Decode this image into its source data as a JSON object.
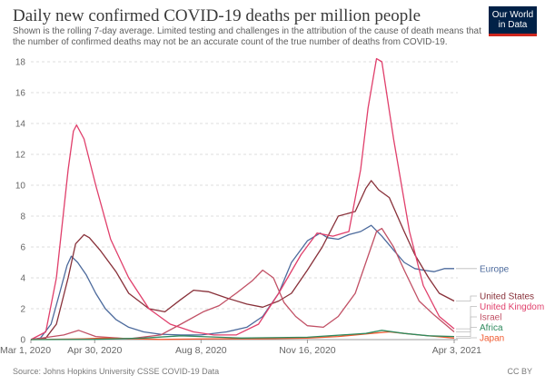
{
  "header": {
    "title": "Daily new confirmed COVID-19 deaths per million people",
    "subtitle": "Shown is the rolling 7-day average. Limited testing and challenges in the attribution of the cause of death means that the number of confirmed deaths may not be an accurate count of the true number of deaths from COVID-19.",
    "logo_line1": "Our World",
    "logo_line2": "in Data"
  },
  "footer": {
    "source": "Source: Johns Hopkins University CSSE COVID-19 Data",
    "license": "CC BY"
  },
  "chart_data": {
    "type": "line",
    "title": "Daily new confirmed COVID-19 deaths per million people",
    "ylim": [
      0,
      18
    ],
    "y_ticks": [
      0,
      2,
      4,
      6,
      8,
      10,
      12,
      14,
      16,
      18
    ],
    "x_range": [
      "2020-03-01",
      "2021-04-03"
    ],
    "x_ticks": [
      {
        "date": "2020-03-01",
        "label": "Mar 1, 2020"
      },
      {
        "date": "2020-04-30",
        "label": "Apr 30, 2020"
      },
      {
        "date": "2020-08-08",
        "label": "Aug 8, 2020"
      },
      {
        "date": "2020-11-16",
        "label": "Nov 16, 2020"
      },
      {
        "date": "2021-04-03",
        "label": "Apr 3, 2021"
      }
    ],
    "grid": true,
    "legend_position": "right",
    "series": [
      {
        "name": "Europe",
        "color": "#4c6a9c",
        "points": [
          [
            "2020-03-01",
            0
          ],
          [
            "2020-03-10",
            0.1
          ],
          [
            "2020-03-20",
            1.0
          ],
          [
            "2020-03-28",
            3.0
          ],
          [
            "2020-04-04",
            4.8
          ],
          [
            "2020-04-08",
            5.4
          ],
          [
            "2020-04-14",
            5.0
          ],
          [
            "2020-04-22",
            4.2
          ],
          [
            "2020-05-01",
            3.0
          ],
          [
            "2020-05-10",
            2.0
          ],
          [
            "2020-05-20",
            1.3
          ],
          [
            "2020-06-01",
            0.8
          ],
          [
            "2020-06-15",
            0.5
          ],
          [
            "2020-07-01",
            0.35
          ],
          [
            "2020-07-20",
            0.3
          ],
          [
            "2020-08-08",
            0.3
          ],
          [
            "2020-09-01",
            0.5
          ],
          [
            "2020-09-20",
            0.8
          ],
          [
            "2020-10-05",
            1.5
          ],
          [
            "2020-10-20",
            3.0
          ],
          [
            "2020-11-01",
            5.0
          ],
          [
            "2020-11-16",
            6.4
          ],
          [
            "2020-11-28",
            6.9
          ],
          [
            "2020-12-05",
            6.6
          ],
          [
            "2020-12-15",
            6.5
          ],
          [
            "2020-12-25",
            6.8
          ],
          [
            "2021-01-05",
            7.0
          ],
          [
            "2021-01-15",
            7.4
          ],
          [
            "2021-01-25",
            6.7
          ],
          [
            "2021-02-05",
            5.8
          ],
          [
            "2021-02-15",
            5.0
          ],
          [
            "2021-02-25",
            4.6
          ],
          [
            "2021-03-05",
            4.5
          ],
          [
            "2021-03-15",
            4.4
          ],
          [
            "2021-03-25",
            4.6
          ],
          [
            "2021-04-03",
            4.6
          ]
        ]
      },
      {
        "name": "United States",
        "color": "#883039",
        "points": [
          [
            "2020-03-01",
            0
          ],
          [
            "2020-03-15",
            0.1
          ],
          [
            "2020-03-25",
            1.0
          ],
          [
            "2020-04-05",
            4.0
          ],
          [
            "2020-04-12",
            6.2
          ],
          [
            "2020-04-20",
            6.8
          ],
          [
            "2020-04-25",
            6.6
          ],
          [
            "2020-05-05",
            5.8
          ],
          [
            "2020-05-20",
            4.4
          ],
          [
            "2020-06-01",
            3.0
          ],
          [
            "2020-06-20",
            2.0
          ],
          [
            "2020-07-05",
            1.8
          ],
          [
            "2020-07-20",
            2.6
          ],
          [
            "2020-08-01",
            3.2
          ],
          [
            "2020-08-15",
            3.1
          ],
          [
            "2020-09-01",
            2.7
          ],
          [
            "2020-09-20",
            2.3
          ],
          [
            "2020-10-05",
            2.1
          ],
          [
            "2020-10-20",
            2.5
          ],
          [
            "2020-11-01",
            3.0
          ],
          [
            "2020-11-16",
            4.5
          ],
          [
            "2020-11-30",
            6.0
          ],
          [
            "2020-12-15",
            8.0
          ],
          [
            "2020-12-31",
            8.3
          ],
          [
            "2021-01-10",
            9.8
          ],
          [
            "2021-01-15",
            10.3
          ],
          [
            "2021-01-22",
            9.7
          ],
          [
            "2021-02-01",
            9.2
          ],
          [
            "2021-02-15",
            7.0
          ],
          [
            "2021-02-25",
            5.5
          ],
          [
            "2021-03-10",
            4.0
          ],
          [
            "2021-03-20",
            3.0
          ],
          [
            "2021-04-03",
            2.5
          ]
        ]
      },
      {
        "name": "Israel",
        "color": "#c15065",
        "points": [
          [
            "2020-03-01",
            0
          ],
          [
            "2020-04-01",
            0.3
          ],
          [
            "2020-04-15",
            0.6
          ],
          [
            "2020-05-01",
            0.2
          ],
          [
            "2020-06-01",
            0.05
          ],
          [
            "2020-07-01",
            0.3
          ],
          [
            "2020-07-20",
            1.0
          ],
          [
            "2020-08-10",
            1.8
          ],
          [
            "2020-08-25",
            2.2
          ],
          [
            "2020-09-10",
            3.0
          ],
          [
            "2020-09-25",
            3.8
          ],
          [
            "2020-10-05",
            4.5
          ],
          [
            "2020-10-15",
            4.0
          ],
          [
            "2020-10-25",
            2.4
          ],
          [
            "2020-11-05",
            1.5
          ],
          [
            "2020-11-16",
            0.9
          ],
          [
            "2020-12-01",
            0.8
          ],
          [
            "2020-12-15",
            1.5
          ],
          [
            "2020-12-31",
            3.0
          ],
          [
            "2021-01-10",
            5.0
          ],
          [
            "2021-01-20",
            7.0
          ],
          [
            "2021-01-25",
            7.2
          ],
          [
            "2021-02-05",
            6.0
          ],
          [
            "2021-02-15",
            4.5
          ],
          [
            "2021-03-01",
            2.5
          ],
          [
            "2021-03-15",
            1.6
          ],
          [
            "2021-04-03",
            0.5
          ]
        ]
      },
      {
        "name": "United Kingdom",
        "color": "#e03f6b",
        "points": [
          [
            "2020-03-01",
            0
          ],
          [
            "2020-03-15",
            0.5
          ],
          [
            "2020-03-25",
            4.0
          ],
          [
            "2020-04-05",
            11.0
          ],
          [
            "2020-04-10",
            13.5
          ],
          [
            "2020-04-13",
            13.9
          ],
          [
            "2020-04-20",
            13.0
          ],
          [
            "2020-05-01",
            10.0
          ],
          [
            "2020-05-15",
            6.5
          ],
          [
            "2020-06-01",
            4.0
          ],
          [
            "2020-06-20",
            2.0
          ],
          [
            "2020-07-10",
            1.0
          ],
          [
            "2020-08-01",
            0.5
          ],
          [
            "2020-08-20",
            0.3
          ],
          [
            "2020-09-10",
            0.3
          ],
          [
            "2020-10-01",
            1.0
          ],
          [
            "2020-10-20",
            3.0
          ],
          [
            "2020-11-10",
            5.5
          ],
          [
            "2020-11-25",
            6.9
          ],
          [
            "2020-12-10",
            6.7
          ],
          [
            "2020-12-25",
            7.0
          ],
          [
            "2021-01-05",
            11.0
          ],
          [
            "2021-01-12",
            15.0
          ],
          [
            "2021-01-20",
            18.2
          ],
          [
            "2021-01-25",
            18.0
          ],
          [
            "2021-02-05",
            13.0
          ],
          [
            "2021-02-20",
            7.0
          ],
          [
            "2021-03-05",
            3.5
          ],
          [
            "2021-03-20",
            1.5
          ],
          [
            "2021-04-03",
            0.7
          ]
        ]
      },
      {
        "name": "Japan",
        "color": "#f05a30",
        "points": [
          [
            "2020-03-01",
            0
          ],
          [
            "2020-04-20",
            0.05
          ],
          [
            "2020-05-10",
            0.1
          ],
          [
            "2020-07-01",
            0.01
          ],
          [
            "2020-08-20",
            0.05
          ],
          [
            "2020-10-01",
            0.05
          ],
          [
            "2020-11-16",
            0.1
          ],
          [
            "2020-12-15",
            0.2
          ],
          [
            "2021-01-15",
            0.4
          ],
          [
            "2021-02-01",
            0.5
          ],
          [
            "2021-02-15",
            0.4
          ],
          [
            "2021-03-01",
            0.3
          ],
          [
            "2021-04-03",
            0.1
          ]
        ]
      },
      {
        "name": "Africa",
        "color": "#2f8a5e",
        "points": [
          [
            "2020-03-01",
            0
          ],
          [
            "2020-05-01",
            0.02
          ],
          [
            "2020-06-15",
            0.1
          ],
          [
            "2020-07-20",
            0.25
          ],
          [
            "2020-08-08",
            0.2
          ],
          [
            "2020-09-15",
            0.1
          ],
          [
            "2020-11-16",
            0.15
          ],
          [
            "2021-01-10",
            0.4
          ],
          [
            "2021-01-25",
            0.6
          ],
          [
            "2021-02-15",
            0.4
          ],
          [
            "2021-03-10",
            0.25
          ],
          [
            "2021-04-03",
            0.2
          ]
        ]
      }
    ]
  }
}
